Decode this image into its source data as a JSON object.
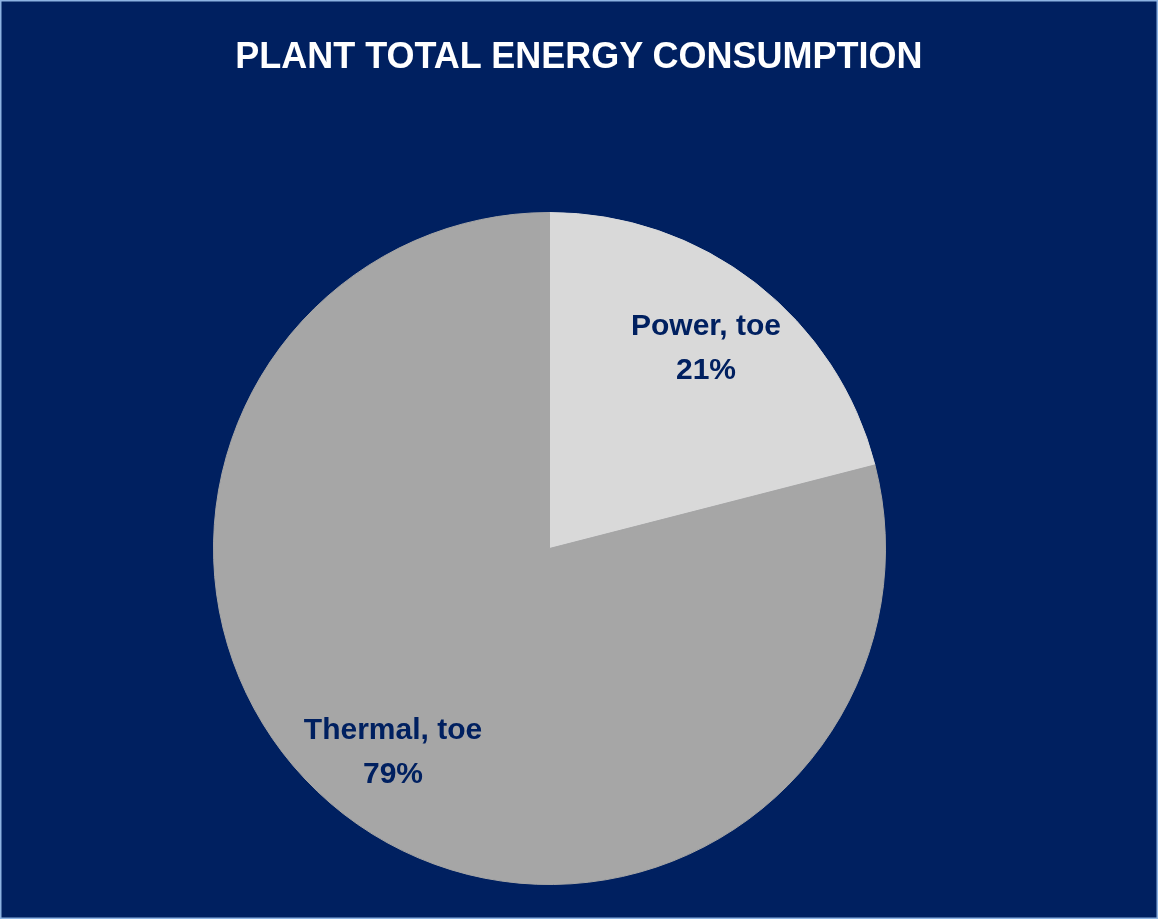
{
  "chart_data": {
    "type": "pie",
    "title": "PLANT TOTAL ENERGY CONSUMPTION",
    "categories": [
      "Power, toe",
      "Thermal, toe"
    ],
    "values": [
      21,
      79
    ],
    "colors": [
      "#d9d9d9",
      "#a6a6a6"
    ],
    "value_labels": [
      "21%",
      "79%"
    ]
  }
}
